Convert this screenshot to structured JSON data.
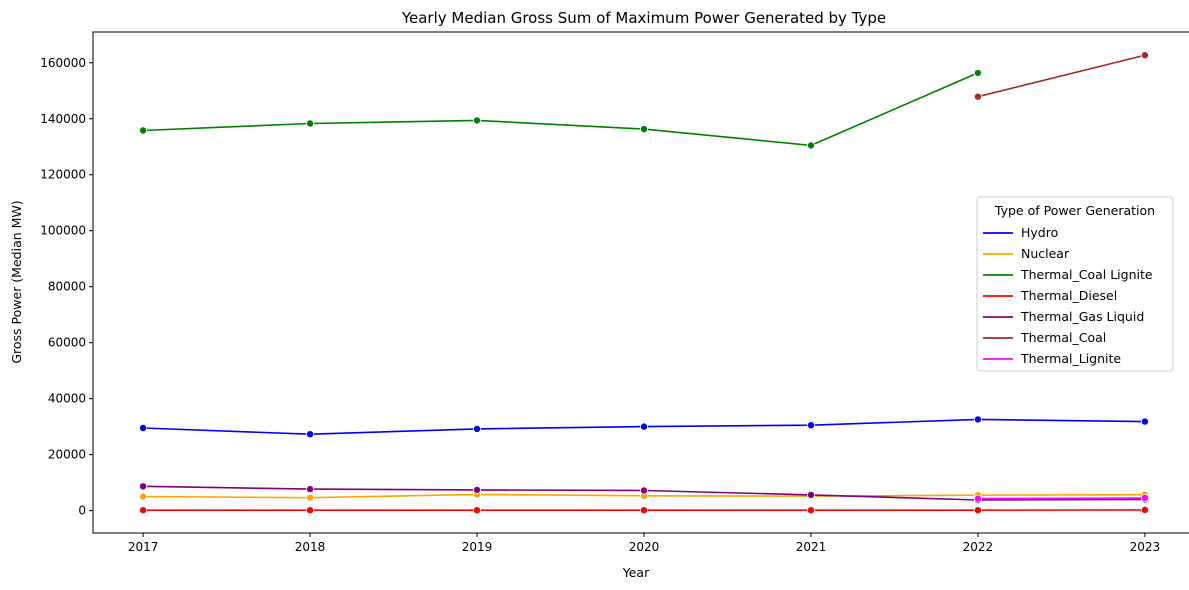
{
  "chart_data": {
    "type": "line",
    "title": "Yearly Median Gross Sum of Maximum Power Generated by Type",
    "xlabel": "Year",
    "ylabel": "Gross Power (Median MW)",
    "x": [
      2017,
      2018,
      2019,
      2020,
      2021,
      2022,
      2023
    ],
    "x_ticks": [
      "2017",
      "2018",
      "2019",
      "2020",
      "2021",
      "2022",
      "2023"
    ],
    "y_ticks": [
      "0",
      "20000",
      "40000",
      "60000",
      "80000",
      "100000",
      "120000",
      "140000",
      "160000"
    ],
    "xlim": [
      2016.7,
      2023.3
    ],
    "ylim": [
      -8000,
      171000
    ],
    "grid": false,
    "legend": {
      "title": "Type of Power Generation",
      "placement": "center-right"
    },
    "series": [
      {
        "name": "Hydro",
        "color": "#0000ff",
        "x": [
          2017,
          2018,
          2019,
          2020,
          2021,
          2022,
          2023
        ],
        "values": [
          29500,
          27300,
          29200,
          30000,
          30500,
          32600,
          31800
        ]
      },
      {
        "name": "Nuclear",
        "color": "#ffa500",
        "x": [
          2017,
          2018,
          2019,
          2020,
          2021,
          2022,
          2023
        ],
        "values": [
          5000,
          4600,
          5800,
          5300,
          5200,
          5500,
          5700
        ]
      },
      {
        "name": "Thermal_Coal Lignite",
        "color": "#008000",
        "x": [
          2017,
          2018,
          2019,
          2020,
          2021,
          2022
        ],
        "values": [
          135800,
          138300,
          139400,
          136300,
          130500,
          156400
        ]
      },
      {
        "name": "Thermal_Diesel",
        "color": "#ff0000",
        "x": [
          2017,
          2018,
          2019,
          2020,
          2021,
          2022,
          2023
        ],
        "values": [
          150,
          150,
          150,
          150,
          150,
          150,
          250
        ]
      },
      {
        "name": "Thermal_Gas Liquid",
        "color": "#800080",
        "x": [
          2017,
          2018,
          2019,
          2020,
          2021,
          2022,
          2023
        ],
        "values": [
          8700,
          7700,
          7400,
          7200,
          5600,
          3800,
          4000
        ]
      },
      {
        "name": "Thermal_Coal",
        "color": "#a52a2a",
        "x": [
          2022,
          2023
        ],
        "values": [
          147900,
          162700
        ]
      },
      {
        "name": "Thermal_Lignite",
        "color": "#ff00ff",
        "x": [
          2022,
          2023
        ],
        "values": [
          4300,
          4500
        ]
      }
    ]
  }
}
